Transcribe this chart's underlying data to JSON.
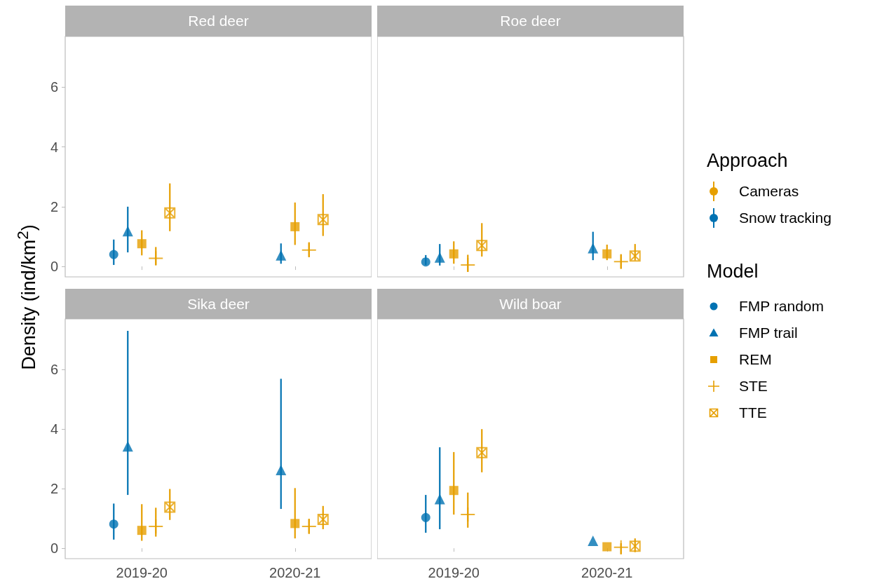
{
  "chart_data": [
    {
      "type": "scatter",
      "title": "Red deer",
      "ylabel": "Density (ind/km$^{2}$)",
      "legend": "right",
      "legend_title": "Approach",
      "annotations": [
        "Model"
      ],
      "categories": [
        "2019-20",
        "2020-21"
      ],
      "ylim": [
        -0.35,
        7.7
      ],
      "yticks": [
        0,
        2,
        4,
        6
      ],
      "grid": false,
      "tick_labels": "y",
      "series": [
        {
          "name": "FMP random",
          "color": "#0072b2",
          "marker": "circle",
          "values": [
            0.4,
            null
          ],
          "errors": [
            [
              0.05,
              0.9
            ],
            null
          ]
        },
        {
          "name": "FMP trail",
          "color": "#0072b2",
          "marker": "triangle",
          "values": [
            1.18,
            0.37
          ],
          "errors": [
            [
              0.47,
              2.0
            ],
            [
              0.09,
              0.77
            ]
          ]
        },
        {
          "name": "REM",
          "color": "#e69f00",
          "marker": "square",
          "values": [
            0.76,
            1.33
          ],
          "errors": [
            [
              0.37,
              1.21
            ],
            [
              0.72,
              2.14
            ]
          ]
        },
        {
          "name": "STE",
          "color": "#e69f00",
          "marker": "cross",
          "values": [
            0.27,
            0.55
          ],
          "errors": [
            [
              0.04,
              0.65
            ],
            [
              0.31,
              0.81
            ]
          ]
        },
        {
          "name": "TTE",
          "color": "#e69f00",
          "values": [
            1.79,
            1.57
          ],
          "errors": [
            [
              1.18,
              2.78
            ],
            [
              1.02,
              2.42
            ]
          ]
        },
        {
          "name": "Cameras",
          "color": "#e69f00",
          "values": [
            null,
            null
          ]
        },
        {
          "name": "Snow tracking",
          "color": "#0072b2",
          "values": [
            null,
            null
          ]
        }
      ]
    },
    {
      "type": "scatter",
      "title": "Roe deer",
      "categories": [
        "2019-20",
        "2020-21"
      ],
      "ylim": [
        -0.35,
        7.7
      ],
      "yticks": [
        0,
        2,
        4,
        6
      ],
      "grid": false,
      "tick_labels": false,
      "series": [
        {
          "color": "#0072b2",
          "marker": "circle",
          "values": [
            0.15,
            null
          ],
          "errors": [
            [
              0.05,
              0.38
            ],
            null
          ]
        },
        {
          "color": "#0072b2",
          "marker": "triangle",
          "values": [
            0.3,
            0.61
          ],
          "errors": [
            [
              0.03,
              0.75
            ],
            [
              0.21,
              1.16
            ]
          ]
        },
        {
          "color": "#e69f00",
          "marker": "square",
          "values": [
            0.42,
            0.42
          ],
          "errors": [
            [
              0.09,
              0.84
            ],
            [
              0.21,
              0.73
            ]
          ]
        },
        {
          "color": "#e69f00",
          "marker": "cross",
          "values": [
            0.05,
            0.16
          ],
          "errors": [
            [
              -0.18,
              0.39
            ],
            [
              -0.08,
              0.41
            ]
          ]
        },
        {
          "color": "#e69f00",
          "values": [
            0.7,
            0.35
          ],
          "errors": [
            [
              0.33,
              1.45
            ],
            [
              0.2,
              0.75
            ]
          ]
        }
      ]
    },
    {
      "type": "scatter",
      "title": "Sika deer",
      "categories": [
        "2019-20",
        "2020-21"
      ],
      "ylim": [
        -0.35,
        7.7
      ],
      "yticks": [
        0,
        2,
        4,
        6
      ],
      "grid": false,
      "series": [
        {
          "color": "#0072b2",
          "marker": "circle",
          "values": [
            0.81,
            null
          ],
          "errors": [
            [
              0.29,
              1.5
            ],
            null
          ]
        },
        {
          "color": "#0072b2",
          "marker": "triangle",
          "values": [
            3.42,
            2.63
          ],
          "errors": [
            [
              1.79,
              7.3
            ],
            [
              1.32,
              5.69
            ]
          ]
        },
        {
          "color": "#e69f00",
          "marker": "square",
          "values": [
            0.6,
            0.83
          ],
          "errors": [
            [
              0.25,
              1.48
            ],
            [
              0.33,
              2.02
            ]
          ]
        },
        {
          "color": "#e69f00",
          "marker": "cross",
          "values": [
            0.73,
            0.73
          ],
          "errors": [
            [
              0.39,
              1.36
            ],
            [
              0.48,
              0.99
            ]
          ]
        },
        {
          "color": "#e69f00",
          "values": [
            1.38,
            0.97
          ],
          "errors": [
            [
              0.95,
              1.99
            ],
            [
              0.64,
              1.42
            ]
          ]
        }
      ]
    },
    {
      "type": "scatter",
      "title": "Wild boar",
      "categories": [
        "2019-20",
        "2020-21"
      ],
      "ylim": [
        -0.35,
        7.7
      ],
      "yticks": [
        0,
        2,
        4,
        6
      ],
      "grid": false,
      "tick_labels": "x",
      "series": [
        {
          "color": "#0072b2",
          "marker": "circle",
          "values": [
            1.03,
            null
          ],
          "errors": [
            [
              0.52,
              1.79
            ],
            null
          ]
        },
        {
          "color": "#0072b2",
          "marker": "triangle",
          "values": [
            1.65,
            0.25
          ],
          "errors": [
            [
              0.64,
              3.39
            ],
            null
          ]
        },
        {
          "color": "#e69f00",
          "marker": "square",
          "values": [
            1.94,
            0.05
          ],
          "errors": [
            [
              1.13,
              3.23
            ],
            null
          ]
        },
        {
          "color": "#e69f00",
          "marker": "cross",
          "values": [
            1.13,
            0.03
          ],
          "errors": [
            [
              0.69,
              1.87
            ],
            [
              -0.2,
              0.17
            ]
          ]
        },
        {
          "color": "#e69f00",
          "values": [
            3.21,
            0.07
          ],
          "errors": [
            [
              2.55,
              4.0
            ],
            [
              -0.13,
              0.33
            ]
          ]
        }
      ]
    }
  ]
}
